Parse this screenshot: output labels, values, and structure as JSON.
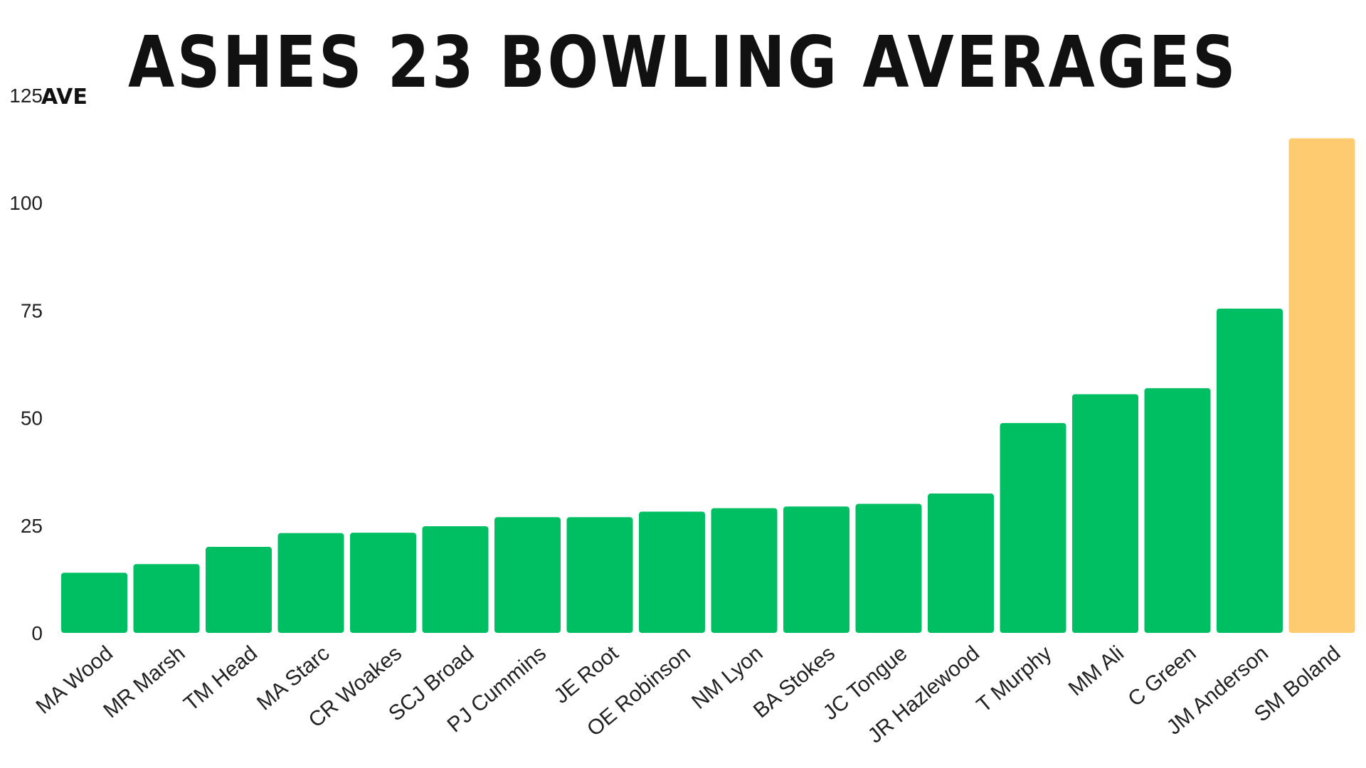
{
  "chart_data": {
    "type": "bar",
    "title": "ASHES 23 BOWLING AVERAGES",
    "ylabel": "AVE",
    "xlabel": "",
    "ylim": [
      0,
      125
    ],
    "yticks": [
      0,
      25,
      50,
      75,
      100,
      125
    ],
    "grid": false,
    "legend": "none",
    "categories": [
      "MA Wood",
      "MR Marsh",
      "TM Head",
      "MA Starc",
      "CR Woakes",
      "SCJ Broad",
      "PJ Cummins",
      "JE Root",
      "OE Robinson",
      "NM Lyon",
      "BA Stokes",
      "JC Tongue",
      "JR Hazlewood",
      "T Murphy",
      "MM Ali",
      "C Green",
      "JM Anderson",
      "SM Boland"
    ],
    "values": [
      14,
      16,
      20,
      23.2,
      23.3,
      24.8,
      26.9,
      26.9,
      28.2,
      29,
      29.4,
      30,
      32.4,
      48.8,
      55.5,
      56.9,
      75.4,
      115
    ],
    "colors": {
      "default_bar": "#00BF63",
      "highlight_bar": "#FFCB70",
      "highlight_category": "SM Boland",
      "text": "#222222",
      "title": "#111111",
      "background": "#ffffff"
    }
  }
}
